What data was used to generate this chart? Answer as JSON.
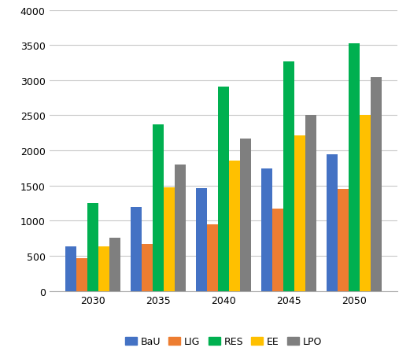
{
  "categories": [
    "2030",
    "2035",
    "2040",
    "2045",
    "2050"
  ],
  "series": {
    "BaU": [
      630,
      1190,
      1460,
      1740,
      1950
    ],
    "LIG": [
      470,
      670,
      950,
      1170,
      1450
    ],
    "RES": [
      1250,
      2370,
      2910,
      3270,
      3520
    ],
    "EE": [
      630,
      1470,
      1860,
      2210,
      2510
    ],
    "LPO": [
      760,
      1800,
      2170,
      2500,
      3040
    ]
  },
  "colors": {
    "BaU": "#4472C4",
    "LIG": "#ED7D31",
    "RES": "#00B050",
    "EE": "#FFC000",
    "LPO": "#7F7F7F"
  },
  "ylim": [
    0,
    4000
  ],
  "yticks": [
    0,
    500,
    1000,
    1500,
    2000,
    2500,
    3000,
    3500,
    4000
  ],
  "legend_order": [
    "BaU",
    "LIG",
    "RES",
    "EE",
    "LPO"
  ],
  "background_color": "#FFFFFF",
  "grid_color": "#C8C8C8",
  "bar_width": 0.17,
  "figsize": [
    5.21,
    4.52
  ],
  "dpi": 100
}
